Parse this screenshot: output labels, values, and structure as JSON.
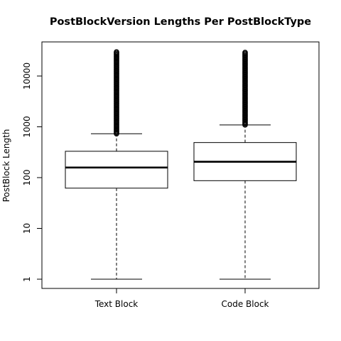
{
  "chart_data": {
    "type": "boxplot",
    "title": "PostBlockVersion Lengths Per PostBlockType",
    "xlabel": "",
    "ylabel": "PostBlock Length",
    "yscale": "log",
    "ylim": [
      0.68,
      45000
    ],
    "y_ticks": [
      {
        "value": 1,
        "label": "1"
      },
      {
        "value": 10,
        "label": "10"
      },
      {
        "value": 100,
        "label": "100"
      },
      {
        "value": 1000,
        "label": "1000"
      },
      {
        "value": 10000,
        "label": "10000"
      }
    ],
    "categories": [
      "Text Block",
      "Code Block"
    ],
    "boxes": [
      {
        "category": "Text Block",
        "whisker_low": 1,
        "q1": 62,
        "median": 158,
        "q3": 330,
        "whisker_high": 730,
        "outlier_min": 730,
        "outlier_max": 30000
      },
      {
        "category": "Code Block",
        "whisker_low": 1,
        "q1": 87,
        "median": 205,
        "q3": 490,
        "whisker_high": 1090,
        "outlier_min": 1090,
        "outlier_max": 30000
      }
    ],
    "colors": {
      "box_fill": "#ffffff",
      "stroke": "#000000"
    },
    "grid": false,
    "legend": "none"
  }
}
